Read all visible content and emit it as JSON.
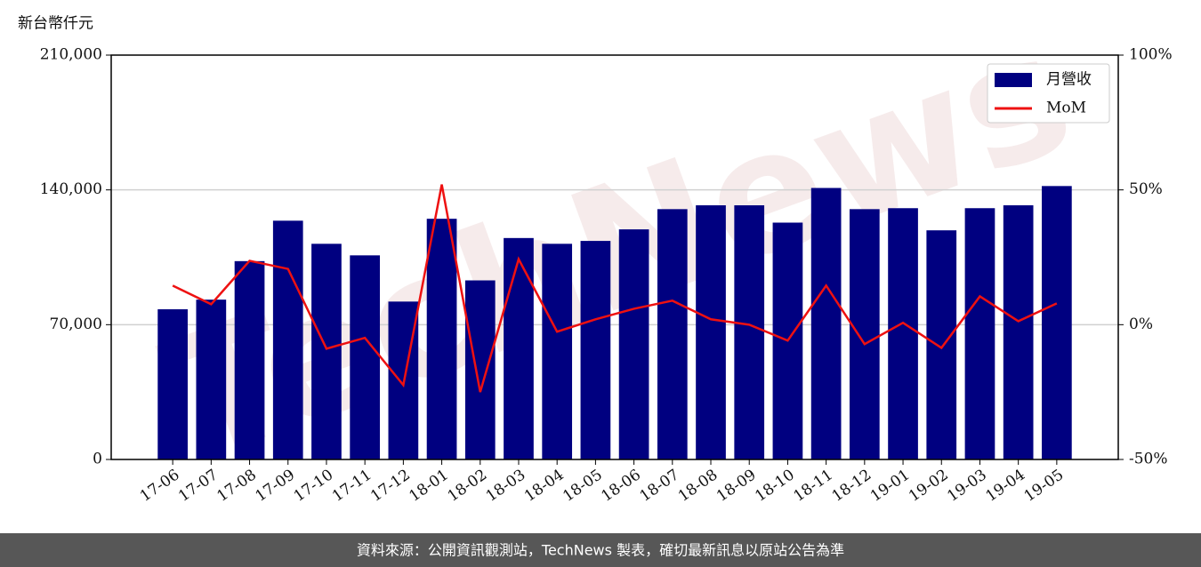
{
  "chart_data": {
    "type": "bar",
    "y_label": "新台幣仟元",
    "watermark": "TechNews",
    "footer": "資料來源：公開資訊觀測站，TechNews 製表，確切最新訊息以原站公告為準",
    "categories": [
      "17-06",
      "17-07",
      "17-08",
      "17-09",
      "17-10",
      "17-11",
      "17-12",
      "18-01",
      "18-02",
      "18-03",
      "18-04",
      "18-05",
      "18-06",
      "18-07",
      "18-08",
      "18-09",
      "18-10",
      "18-11",
      "18-12",
      "19-01",
      "19-02",
      "19-03",
      "19-04",
      "19-05"
    ],
    "series": [
      {
        "name": "月營收",
        "type": "bar",
        "color": "#000080",
        "values": [
          78000,
          83000,
          103000,
          124000,
          112000,
          106000,
          82000,
          125000,
          93000,
          115000,
          112000,
          113500,
          119500,
          130000,
          132000,
          132000,
          123000,
          141000,
          130000,
          130500,
          119000,
          130500,
          132000,
          142000
        ]
      },
      {
        "name": "MoM",
        "type": "line",
        "axis": "y2",
        "color": "#ee1111",
        "values": [
          14.5,
          7.6,
          23.7,
          20.7,
          -8.9,
          -4.9,
          -22.4,
          52,
          -25,
          24.3,
          -2.6,
          2,
          5.9,
          8.9,
          2,
          0,
          -5.9,
          14.5,
          -7.2,
          0.7,
          -8.6,
          10.5,
          1.3,
          7.9
        ]
      }
    ],
    "ylim": [
      0,
      210000
    ],
    "yticks": [
      0,
      {
        "value": 70000,
        "label": "70,000"
      },
      {
        "value": 140000,
        "label": "140,000"
      },
      {
        "value": 210000,
        "label": "210,000"
      }
    ],
    "y2lim": [
      -50,
      100
    ],
    "y2ticks": [
      {
        "value": -50,
        "label": "-50%"
      },
      {
        "value": 0,
        "label": "0%"
      },
      {
        "value": 50,
        "label": "50%"
      },
      {
        "value": 100,
        "label": "100%"
      }
    ],
    "grid": true,
    "legend": "upper right"
  }
}
